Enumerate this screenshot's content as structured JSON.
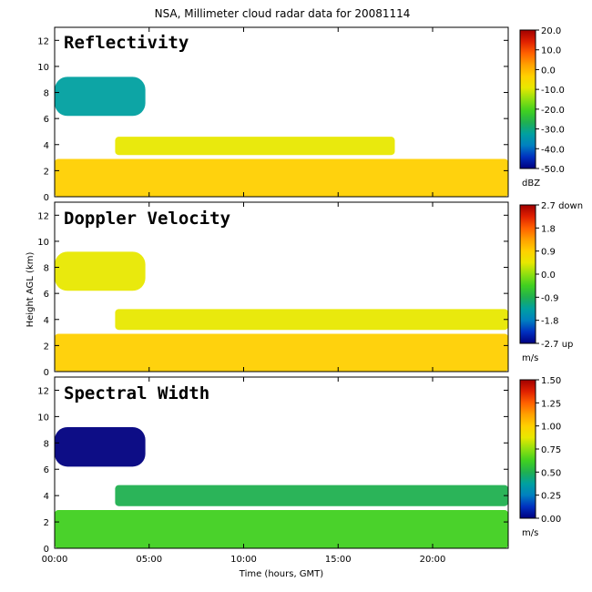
{
  "title": "NSA, Millimeter cloud radar data for 20081114",
  "xlabel": "Time (hours, GMT)",
  "ylabel": "Height AGL (km)",
  "colors": {
    "colormap": [
      "#000080",
      "#0030c0",
      "#0080c0",
      "#00a0a0",
      "#20b050",
      "#40d020",
      "#90e010",
      "#e8e800",
      "#ffd000",
      "#ffa000",
      "#ff6000",
      "#e02000",
      "#a00000"
    ]
  },
  "chart_data": [
    {
      "type": "heatmap",
      "title": "Reflectivity",
      "x_ticks": [
        "00:00",
        "05:00",
        "10:00",
        "15:00",
        "20:00"
      ],
      "x_tick_values": [
        0,
        5,
        10,
        15,
        20
      ],
      "xlim": [
        0,
        24
      ],
      "y_ticks": [
        "0",
        "2",
        "4",
        "6",
        "8",
        "10",
        "12"
      ],
      "y_tick_values": [
        0,
        2,
        4,
        6,
        8,
        10,
        12
      ],
      "ylim": [
        0,
        13
      ],
      "colorbar": {
        "labels": [
          "20.0",
          "10.0",
          "0.0",
          "-10.0",
          "-20.0",
          "-30.0",
          "-40.0",
          "-50.0"
        ],
        "range": [
          -50,
          20
        ],
        "unit": "dBZ"
      },
      "cloud_layers": [
        {
          "t_start": 0,
          "t_end": 24,
          "base_km": 0,
          "top_km": 2.9,
          "level": 0.68
        },
        {
          "t_start": 3.2,
          "t_end": 18,
          "base_km": 3.2,
          "top_km": 4.6,
          "level": 0.55
        },
        {
          "t_start": 0,
          "t_end": 4.8,
          "base_km": 6.2,
          "top_km": 9.2,
          "level": 0.25
        }
      ]
    },
    {
      "type": "heatmap",
      "title": "Doppler Velocity",
      "x_ticks": [
        "00:00",
        "05:00",
        "10:00",
        "15:00",
        "20:00"
      ],
      "x_tick_values": [
        0,
        5,
        10,
        15,
        20
      ],
      "xlim": [
        0,
        24
      ],
      "y_ticks": [
        "0",
        "2",
        "4",
        "6",
        "8",
        "10",
        "12"
      ],
      "y_tick_values": [
        0,
        2,
        4,
        6,
        8,
        10,
        12
      ],
      "ylim": [
        0,
        13
      ],
      "colorbar": {
        "labels": [
          "2.7 down",
          "1.8",
          "0.9",
          "0.0",
          "-0.9",
          "-1.8",
          "-2.7 up"
        ],
        "range": [
          -2.7,
          2.7
        ],
        "unit": "m/s"
      },
      "cloud_layers": [
        {
          "t_start": 0,
          "t_end": 24,
          "base_km": 0,
          "top_km": 2.9,
          "level": 0.64
        },
        {
          "t_start": 3.2,
          "t_end": 24,
          "base_km": 3.2,
          "top_km": 4.8,
          "level": 0.62
        },
        {
          "t_start": 0,
          "t_end": 4.8,
          "base_km": 6.2,
          "top_km": 9.2,
          "level": 0.58
        }
      ]
    },
    {
      "type": "heatmap",
      "title": "Spectral Width",
      "x_ticks": [
        "00:00",
        "05:00",
        "10:00",
        "15:00",
        "20:00"
      ],
      "x_tick_values": [
        0,
        5,
        10,
        15,
        20
      ],
      "xlim": [
        0,
        24
      ],
      "y_ticks": [
        "0",
        "2",
        "4",
        "6",
        "8",
        "10",
        "12"
      ],
      "y_tick_values": [
        0,
        2,
        4,
        6,
        8,
        10,
        12
      ],
      "ylim": [
        0,
        13
      ],
      "colorbar": {
        "labels": [
          "1.50",
          "1.25",
          "1.00",
          "0.75",
          "0.50",
          "0.25",
          "0.00"
        ],
        "range": [
          0,
          1.5
        ],
        "unit": "m/s"
      },
      "cloud_layers": [
        {
          "t_start": 0,
          "t_end": 24,
          "base_km": 0,
          "top_km": 2.9,
          "level": 0.38
        },
        {
          "t_start": 3.2,
          "t_end": 24,
          "base_km": 3.2,
          "top_km": 4.8,
          "level": 0.32
        },
        {
          "t_start": 0,
          "t_end": 4.8,
          "base_km": 6.2,
          "top_km": 9.2,
          "level": 0.03
        }
      ]
    }
  ]
}
